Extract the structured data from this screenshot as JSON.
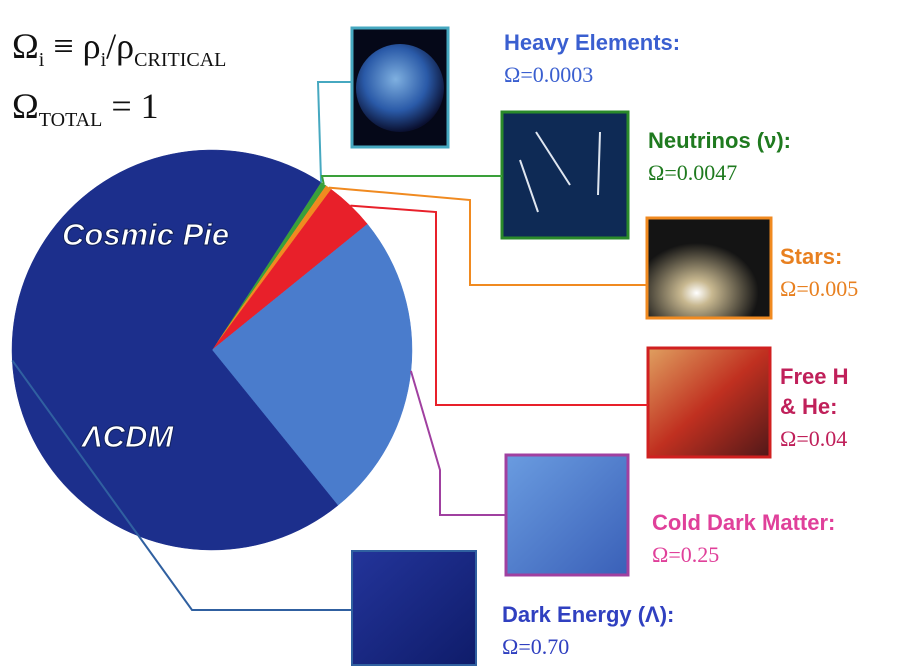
{
  "formulas": [
    [
      {
        "text": "Ω"
      },
      {
        "sub": "i"
      },
      {
        "text": " ≡ ρ"
      },
      {
        "sub": "i"
      },
      {
        "text": "/ρ"
      },
      {
        "sub": "CRITICAL"
      }
    ],
    [
      {
        "text": "Ω"
      },
      {
        "sub": "TOTAL"
      },
      {
        "text": " = 1"
      }
    ]
  ],
  "chart_data": {
    "type": "pie",
    "title": "Cosmic Pie",
    "annotation": "ΛCDM",
    "categories": [
      "Heavy Elements:",
      "Neutrinos (ν):",
      "Stars:",
      "Free H & He:",
      "Cold Dark Matter:",
      "Dark Energy (Λ):"
    ],
    "values": [
      0.0003,
      0.0047,
      0.005,
      0.04,
      0.25,
      0.7
    ],
    "value_labels": [
      "Ω=0.0003",
      "Ω=0.0047",
      "Ω=0.005",
      "Ω=0.04",
      "Ω=0.25",
      "Ω=0.70"
    ],
    "colors": [
      "#46a8c0",
      "#3aa03a",
      "#f08a20",
      "#e8202a",
      "#4a7ccc",
      "#1c2f8c"
    ],
    "label_colors": [
      "#3a5fd0",
      "#1f7a1f",
      "#e88020",
      "#c0205a",
      "#e0409a",
      "#3040c0"
    ]
  }
}
